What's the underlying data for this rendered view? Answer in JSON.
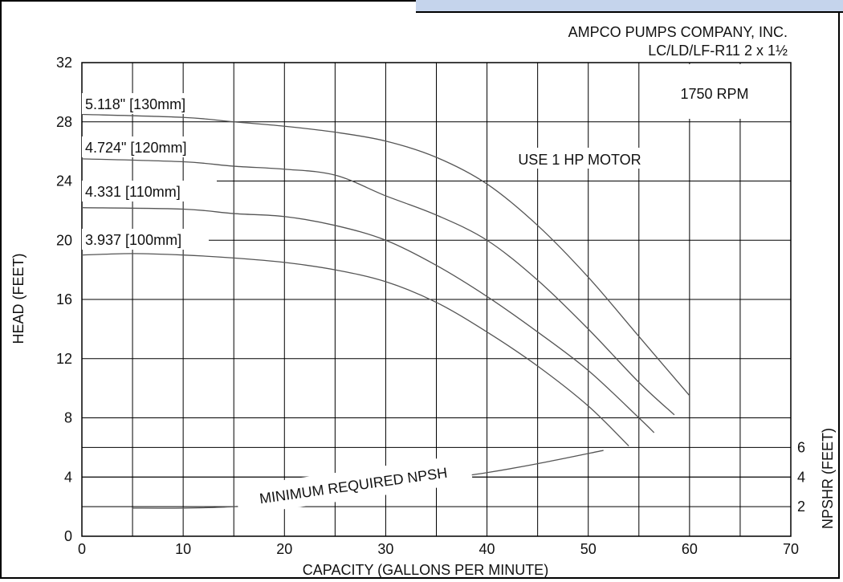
{
  "company": "AMPCO PUMPS COMPANY, INC.",
  "model": "LC/LD/LF-R11 2 x 1½",
  "rpm": "1750 RPM",
  "motor_note": "USE 1 HP MOTOR",
  "npsh_label": "MINIMUM REQUIRED NPSH",
  "colors": {
    "accent": "#c5d4ec",
    "grid": "#000000",
    "curve": "#555555"
  },
  "chart_data": {
    "type": "line",
    "xlabel": "CAPACITY (GALLONS PER MINUTE)",
    "ylabel": "HEAD (FEET)",
    "y2label": "NPSHR (FEET)",
    "xlim": [
      0,
      70
    ],
    "ylim": [
      0,
      32
    ],
    "xticks": [
      0,
      10,
      20,
      30,
      40,
      50,
      60,
      70
    ],
    "yticks": [
      0,
      4,
      8,
      12,
      16,
      20,
      24,
      28,
      32
    ],
    "y2ticks": [
      2,
      4,
      6
    ],
    "grid": true,
    "series": [
      {
        "name": "5.118\" [130mm]",
        "x": [
          0,
          10,
          15,
          20,
          25,
          30,
          35,
          40,
          45,
          50,
          55,
          60
        ],
        "y": [
          28.5,
          28.3,
          28.0,
          27.7,
          27.3,
          26.7,
          25.6,
          23.8,
          21.0,
          17.5,
          13.5,
          9.5
        ]
      },
      {
        "name": "4.724\" [120mm]",
        "x": [
          0,
          10,
          15,
          20,
          25,
          30,
          35,
          40,
          45,
          50,
          55,
          58.5
        ],
        "y": [
          25.5,
          25.3,
          25.0,
          24.8,
          24.4,
          23.0,
          21.7,
          20.0,
          17.3,
          14.0,
          10.4,
          8.2
        ]
      },
      {
        "name": "4.331 [110mm]",
        "x": [
          0,
          10,
          15,
          20,
          25,
          30,
          35,
          40,
          45,
          50,
          55,
          56.5
        ],
        "y": [
          22.2,
          22.1,
          21.8,
          21.6,
          21.0,
          20.0,
          18.3,
          16.2,
          13.8,
          11.2,
          8.0,
          7.0
        ]
      },
      {
        "name": "3.937 [100mm]",
        "x": [
          0,
          5,
          10,
          15,
          20,
          25,
          30,
          35,
          40,
          45,
          50,
          54
        ],
        "y": [
          19.0,
          19.1,
          19.0,
          18.8,
          18.5,
          18.0,
          17.2,
          15.8,
          13.8,
          11.5,
          8.8,
          6.1
        ]
      },
      {
        "name": "MINIMUM REQUIRED NPSH",
        "x": [
          5,
          10,
          15,
          20,
          25,
          30,
          35,
          40,
          45,
          51.5
        ],
        "y": [
          1.9,
          1.9,
          2.0,
          2.3,
          2.8,
          3.3,
          3.8,
          4.3,
          4.9,
          5.8
        ]
      }
    ]
  }
}
